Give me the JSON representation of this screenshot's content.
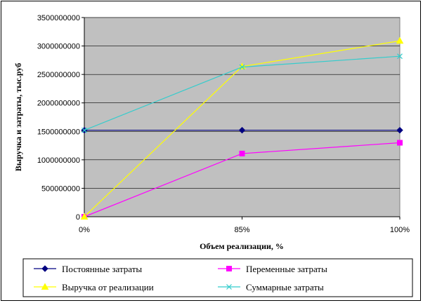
{
  "chart_data": {
    "type": "line",
    "categories": [
      "0%",
      "85%",
      "100%"
    ],
    "xlabel": "Объем реализации, %",
    "ylabel": "Выручка и затраты, тыс.руб",
    "ylim": [
      0,
      3500000000
    ],
    "yticks": [
      0,
      500000000,
      1000000000,
      1500000000,
      2000000000,
      2500000000,
      3000000000,
      3500000000
    ],
    "grid": "horizontal",
    "plot_background": "#c0c0c0",
    "legend_position": "bottom",
    "series": [
      {
        "name": "Постоянные затраты",
        "color": "#000080",
        "marker": "diamond",
        "values": [
          1520000000,
          1520000000,
          1520000000
        ]
      },
      {
        "name": "Переменные затраты",
        "color": "#ff00ff",
        "marker": "square",
        "values": [
          0,
          1110000000,
          1300000000
        ]
      },
      {
        "name": "Выручка от реализации",
        "color": "#ffff00",
        "marker": "triangle",
        "values": [
          0,
          2640000000,
          3090000000
        ]
      },
      {
        "name": "Суммарные затраты",
        "color": "#33cccc",
        "marker": "x",
        "values": [
          1520000000,
          2630000000,
          2820000000
        ]
      }
    ]
  }
}
